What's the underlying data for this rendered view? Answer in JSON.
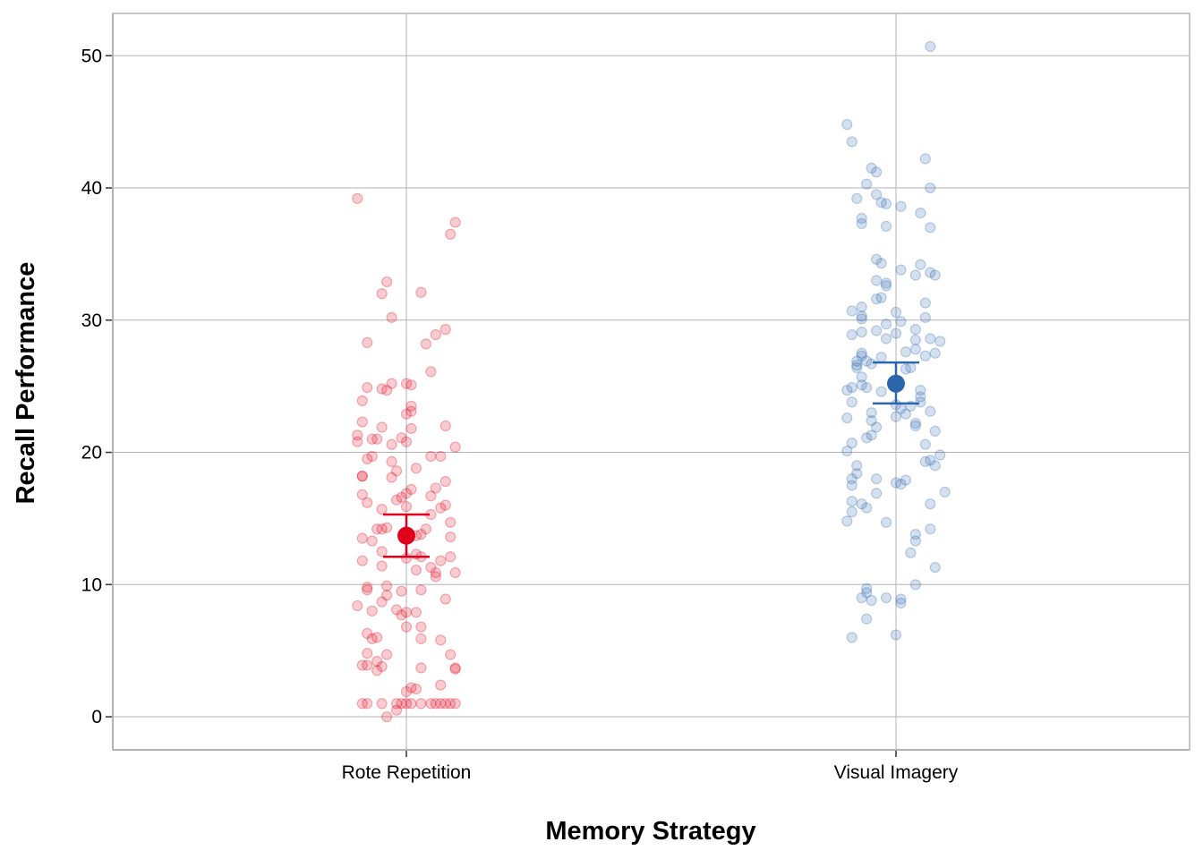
{
  "chart_data": {
    "type": "scatter",
    "xlabel": "Memory Strategy",
    "ylabel": "Recall Performance",
    "categories": [
      "Rote Repetition",
      "Visual Imagery"
    ],
    "ylim": [
      -2.5,
      53.2
    ],
    "yticks": [
      0,
      10,
      20,
      30,
      40,
      50
    ],
    "grid": true,
    "legend": "none",
    "series": [
      {
        "category": "Rote Repetition",
        "color": "#e0001b",
        "summary": {
          "mean": 13.7,
          "lower": 12.1,
          "upper": 15.3
        },
        "points": [
          {
            "x": -0.1,
            "y": 39.2
          },
          {
            "x": 0.1,
            "y": 37.4
          },
          {
            "x": 0.09,
            "y": 36.5
          },
          {
            "x": -0.04,
            "y": 32.9
          },
          {
            "x": -0.05,
            "y": 32.0
          },
          {
            "x": 0.03,
            "y": 32.1
          },
          {
            "x": -0.03,
            "y": 30.2
          },
          {
            "x": 0.08,
            "y": 29.3
          },
          {
            "x": 0.06,
            "y": 28.9
          },
          {
            "x": -0.08,
            "y": 28.3
          },
          {
            "x": 0.04,
            "y": 28.2
          },
          {
            "x": 0.05,
            "y": 26.1
          },
          {
            "x": 0.0,
            "y": 25.2
          },
          {
            "x": -0.03,
            "y": 25.2
          },
          {
            "x": 0.01,
            "y": 25.1
          },
          {
            "x": -0.08,
            "y": 24.9
          },
          {
            "x": -0.05,
            "y": 24.8
          },
          {
            "x": -0.04,
            "y": 24.7
          },
          {
            "x": -0.09,
            "y": 23.9
          },
          {
            "x": 0.01,
            "y": 23.5
          },
          {
            "x": 0.01,
            "y": 23.1
          },
          {
            "x": 0.0,
            "y": 22.9
          },
          {
            "x": -0.09,
            "y": 22.3
          },
          {
            "x": 0.08,
            "y": 22.0
          },
          {
            "x": -0.05,
            "y": 21.9
          },
          {
            "x": 0.01,
            "y": 21.8
          },
          {
            "x": -0.1,
            "y": 21.3
          },
          {
            "x": -0.01,
            "y": 21.1
          },
          {
            "x": -0.07,
            "y": 21.0
          },
          {
            "x": -0.06,
            "y": 21.0
          },
          {
            "x": -0.1,
            "y": 20.8
          },
          {
            "x": 0.0,
            "y": 20.8
          },
          {
            "x": -0.03,
            "y": 20.6
          },
          {
            "x": 0.1,
            "y": 20.4
          },
          {
            "x": -0.07,
            "y": 19.7
          },
          {
            "x": 0.05,
            "y": 19.7
          },
          {
            "x": 0.07,
            "y": 19.7
          },
          {
            "x": -0.08,
            "y": 19.5
          },
          {
            "x": -0.03,
            "y": 19.3
          },
          {
            "x": 0.02,
            "y": 18.8
          },
          {
            "x": -0.02,
            "y": 18.6
          },
          {
            "x": -0.09,
            "y": 18.2
          },
          {
            "x": -0.09,
            "y": 18.2
          },
          {
            "x": -0.03,
            "y": 18.1
          },
          {
            "x": 0.08,
            "y": 17.8
          },
          {
            "x": 0.06,
            "y": 17.3
          },
          {
            "x": 0.01,
            "y": 17.2
          },
          {
            "x": 0.0,
            "y": 16.9
          },
          {
            "x": -0.09,
            "y": 16.8
          },
          {
            "x": 0.05,
            "y": 16.7
          },
          {
            "x": -0.01,
            "y": 16.6
          },
          {
            "x": -0.02,
            "y": 16.4
          },
          {
            "x": -0.08,
            "y": 16.2
          },
          {
            "x": 0.08,
            "y": 16.0
          },
          {
            "x": 0.0,
            "y": 15.9
          },
          {
            "x": 0.07,
            "y": 15.8
          },
          {
            "x": -0.05,
            "y": 15.7
          },
          {
            "x": 0.05,
            "y": 15.3
          },
          {
            "x": 0.09,
            "y": 14.7
          },
          {
            "x": -0.04,
            "y": 14.3
          },
          {
            "x": -0.05,
            "y": 14.2
          },
          {
            "x": -0.06,
            "y": 14.2
          },
          {
            "x": 0.04,
            "y": 14.2
          },
          {
            "x": 0.03,
            "y": 13.8
          },
          {
            "x": 0.02,
            "y": 13.7
          },
          {
            "x": 0.09,
            "y": 13.6
          },
          {
            "x": -0.09,
            "y": 13.5
          },
          {
            "x": -0.07,
            "y": 13.3
          },
          {
            "x": -0.05,
            "y": 12.5
          },
          {
            "x": 0.02,
            "y": 12.3
          },
          {
            "x": 0.09,
            "y": 12.1
          },
          {
            "x": 0.03,
            "y": 12.1
          },
          {
            "x": 0.0,
            "y": 12.0
          },
          {
            "x": 0.07,
            "y": 11.8
          },
          {
            "x": -0.09,
            "y": 11.8
          },
          {
            "x": -0.05,
            "y": 11.4
          },
          {
            "x": 0.05,
            "y": 11.3
          },
          {
            "x": 0.02,
            "y": 11.1
          },
          {
            "x": 0.1,
            "y": 10.9
          },
          {
            "x": 0.06,
            "y": 10.9
          },
          {
            "x": 0.06,
            "y": 10.6
          },
          {
            "x": -0.04,
            "y": 9.9
          },
          {
            "x": -0.08,
            "y": 9.8
          },
          {
            "x": -0.08,
            "y": 9.6
          },
          {
            "x": 0.03,
            "y": 9.6
          },
          {
            "x": -0.01,
            "y": 9.5
          },
          {
            "x": -0.04,
            "y": 9.2
          },
          {
            "x": 0.08,
            "y": 8.9
          },
          {
            "x": -0.05,
            "y": 8.7
          },
          {
            "x": -0.1,
            "y": 8.4
          },
          {
            "x": -0.02,
            "y": 8.1
          },
          {
            "x": -0.07,
            "y": 8.0
          },
          {
            "x": 0.02,
            "y": 7.9
          },
          {
            "x": 0.0,
            "y": 7.9
          },
          {
            "x": -0.01,
            "y": 7.7
          },
          {
            "x": 0.03,
            "y": 6.8
          },
          {
            "x": 0.0,
            "y": 6.8
          },
          {
            "x": -0.08,
            "y": 6.3
          },
          {
            "x": -0.06,
            "y": 6.0
          },
          {
            "x": -0.07,
            "y": 5.9
          },
          {
            "x": 0.03,
            "y": 5.9
          },
          {
            "x": 0.07,
            "y": 5.8
          },
          {
            "x": -0.08,
            "y": 4.8
          },
          {
            "x": -0.04,
            "y": 4.7
          },
          {
            "x": 0.09,
            "y": 4.7
          },
          {
            "x": -0.06,
            "y": 4.2
          },
          {
            "x": -0.09,
            "y": 3.9
          },
          {
            "x": -0.08,
            "y": 3.9
          },
          {
            "x": -0.05,
            "y": 3.8
          },
          {
            "x": 0.03,
            "y": 3.7
          },
          {
            "x": 0.1,
            "y": 3.7
          },
          {
            "x": 0.1,
            "y": 3.6
          },
          {
            "x": -0.06,
            "y": 3.5
          },
          {
            "x": 0.07,
            "y": 2.4
          },
          {
            "x": 0.01,
            "y": 2.2
          },
          {
            "x": 0.02,
            "y": 2.1
          },
          {
            "x": 0.0,
            "y": 1.9
          },
          {
            "x": -0.08,
            "y": 1.0
          },
          {
            "x": -0.09,
            "y": 1.0
          },
          {
            "x": -0.05,
            "y": 1.0
          },
          {
            "x": -0.02,
            "y": 1.0
          },
          {
            "x": 0.0,
            "y": 1.0
          },
          {
            "x": 0.01,
            "y": 1.0
          },
          {
            "x": -0.01,
            "y": 1.0
          },
          {
            "x": 0.03,
            "y": 1.0
          },
          {
            "x": 0.05,
            "y": 1.0
          },
          {
            "x": 0.06,
            "y": 1.0
          },
          {
            "x": 0.07,
            "y": 1.0
          },
          {
            "x": 0.08,
            "y": 1.0
          },
          {
            "x": 0.09,
            "y": 1.0
          },
          {
            "x": 0.1,
            "y": 1.0
          },
          {
            "x": -0.02,
            "y": 0.5
          },
          {
            "x": -0.04,
            "y": 0.0
          }
        ]
      },
      {
        "category": "Visual Imagery",
        "color": "#2c66ad",
        "summary": {
          "mean": 25.2,
          "lower": 23.7,
          "upper": 26.8
        },
        "points": [
          {
            "x": 0.07,
            "y": 50.7
          },
          {
            "x": -0.1,
            "y": 44.8
          },
          {
            "x": -0.09,
            "y": 43.5
          },
          {
            "x": 0.06,
            "y": 42.2
          },
          {
            "x": -0.05,
            "y": 41.5
          },
          {
            "x": -0.04,
            "y": 41.2
          },
          {
            "x": -0.06,
            "y": 40.3
          },
          {
            "x": 0.07,
            "y": 40.0
          },
          {
            "x": -0.04,
            "y": 39.5
          },
          {
            "x": -0.08,
            "y": 39.2
          },
          {
            "x": -0.03,
            "y": 38.9
          },
          {
            "x": -0.02,
            "y": 38.8
          },
          {
            "x": 0.01,
            "y": 38.6
          },
          {
            "x": 0.05,
            "y": 38.1
          },
          {
            "x": -0.07,
            "y": 37.7
          },
          {
            "x": -0.07,
            "y": 37.3
          },
          {
            "x": -0.02,
            "y": 37.1
          },
          {
            "x": 0.07,
            "y": 37.0
          },
          {
            "x": -0.04,
            "y": 34.6
          },
          {
            "x": -0.03,
            "y": 34.3
          },
          {
            "x": 0.05,
            "y": 34.2
          },
          {
            "x": 0.01,
            "y": 33.8
          },
          {
            "x": 0.07,
            "y": 33.6
          },
          {
            "x": 0.08,
            "y": 33.4
          },
          {
            "x": 0.04,
            "y": 33.4
          },
          {
            "x": -0.04,
            "y": 33.0
          },
          {
            "x": -0.02,
            "y": 32.8
          },
          {
            "x": -0.02,
            "y": 32.6
          },
          {
            "x": -0.03,
            "y": 31.7
          },
          {
            "x": -0.04,
            "y": 31.6
          },
          {
            "x": 0.06,
            "y": 31.3
          },
          {
            "x": -0.07,
            "y": 31.0
          },
          {
            "x": -0.09,
            "y": 30.7
          },
          {
            "x": 0.0,
            "y": 30.6
          },
          {
            "x": -0.07,
            "y": 30.3
          },
          {
            "x": -0.07,
            "y": 30.1
          },
          {
            "x": 0.06,
            "y": 30.2
          },
          {
            "x": 0.01,
            "y": 29.9
          },
          {
            "x": -0.02,
            "y": 29.7
          },
          {
            "x": 0.04,
            "y": 29.3
          },
          {
            "x": -0.04,
            "y": 29.2
          },
          {
            "x": -0.07,
            "y": 29.1
          },
          {
            "x": -0.09,
            "y": 28.9
          },
          {
            "x": 0.0,
            "y": 29.0
          },
          {
            "x": 0.07,
            "y": 28.6
          },
          {
            "x": -0.02,
            "y": 28.6
          },
          {
            "x": 0.04,
            "y": 28.5
          },
          {
            "x": 0.09,
            "y": 28.4
          },
          {
            "x": 0.04,
            "y": 27.8
          },
          {
            "x": 0.02,
            "y": 27.6
          },
          {
            "x": -0.07,
            "y": 27.5
          },
          {
            "x": 0.08,
            "y": 27.5
          },
          {
            "x": -0.07,
            "y": 27.3
          },
          {
            "x": 0.06,
            "y": 27.3
          },
          {
            "x": -0.03,
            "y": 27.2
          },
          {
            "x": -0.08,
            "y": 26.9
          },
          {
            "x": -0.06,
            "y": 26.9
          },
          {
            "x": -0.05,
            "y": 26.7
          },
          {
            "x": -0.08,
            "y": 26.6
          },
          {
            "x": 0.03,
            "y": 26.4
          },
          {
            "x": -0.08,
            "y": 26.4
          },
          {
            "x": 0.02,
            "y": 26.3
          },
          {
            "x": -0.07,
            "y": 25.7
          },
          {
            "x": -0.07,
            "y": 25.1
          },
          {
            "x": -0.06,
            "y": 24.9
          },
          {
            "x": -0.09,
            "y": 24.9
          },
          {
            "x": -0.1,
            "y": 24.7
          },
          {
            "x": 0.05,
            "y": 24.7
          },
          {
            "x": -0.03,
            "y": 24.6
          },
          {
            "x": 0.05,
            "y": 24.2
          },
          {
            "x": 0.05,
            "y": 23.8
          },
          {
            "x": -0.09,
            "y": 23.8
          },
          {
            "x": 0.0,
            "y": 23.6
          },
          {
            "x": 0.03,
            "y": 23.5
          },
          {
            "x": 0.01,
            "y": 23.3
          },
          {
            "x": 0.07,
            "y": 23.1
          },
          {
            "x": -0.05,
            "y": 23.0
          },
          {
            "x": 0.02,
            "y": 22.9
          },
          {
            "x": 0.0,
            "y": 22.7
          },
          {
            "x": -0.1,
            "y": 22.6
          },
          {
            "x": -0.05,
            "y": 22.4
          },
          {
            "x": 0.04,
            "y": 22.2
          },
          {
            "x": 0.04,
            "y": 22.0
          },
          {
            "x": -0.04,
            "y": 21.9
          },
          {
            "x": 0.08,
            "y": 21.6
          },
          {
            "x": -0.05,
            "y": 21.3
          },
          {
            "x": -0.06,
            "y": 21.1
          },
          {
            "x": -0.09,
            "y": 20.7
          },
          {
            "x": 0.06,
            "y": 20.6
          },
          {
            "x": -0.1,
            "y": 20.1
          },
          {
            "x": 0.09,
            "y": 19.8
          },
          {
            "x": 0.07,
            "y": 19.4
          },
          {
            "x": 0.06,
            "y": 19.3
          },
          {
            "x": 0.08,
            "y": 19.0
          },
          {
            "x": -0.08,
            "y": 19.0
          },
          {
            "x": -0.08,
            "y": 18.4
          },
          {
            "x": -0.04,
            "y": 18.0
          },
          {
            "x": -0.09,
            "y": 18.0
          },
          {
            "x": 0.02,
            "y": 17.9
          },
          {
            "x": 0.0,
            "y": 17.7
          },
          {
            "x": 0.01,
            "y": 17.6
          },
          {
            "x": -0.09,
            "y": 17.5
          },
          {
            "x": 0.1,
            "y": 17.0
          },
          {
            "x": -0.04,
            "y": 16.9
          },
          {
            "x": -0.09,
            "y": 16.3
          },
          {
            "x": -0.07,
            "y": 16.1
          },
          {
            "x": 0.07,
            "y": 16.1
          },
          {
            "x": -0.06,
            "y": 15.8
          },
          {
            "x": -0.09,
            "y": 15.5
          },
          {
            "x": -0.1,
            "y": 14.8
          },
          {
            "x": -0.02,
            "y": 14.7
          },
          {
            "x": 0.07,
            "y": 14.2
          },
          {
            "x": 0.04,
            "y": 13.8
          },
          {
            "x": 0.04,
            "y": 13.3
          },
          {
            "x": 0.03,
            "y": 12.4
          },
          {
            "x": 0.08,
            "y": 11.3
          },
          {
            "x": 0.04,
            "y": 10.0
          },
          {
            "x": -0.06,
            "y": 9.7
          },
          {
            "x": -0.06,
            "y": 9.4
          },
          {
            "x": -0.07,
            "y": 9.0
          },
          {
            "x": -0.02,
            "y": 9.0
          },
          {
            "x": 0.01,
            "y": 8.9
          },
          {
            "x": -0.05,
            "y": 8.8
          },
          {
            "x": 0.01,
            "y": 8.6
          },
          {
            "x": -0.06,
            "y": 7.4
          },
          {
            "x": 0.0,
            "y": 6.2
          },
          {
            "x": -0.09,
            "y": 6.0
          }
        ]
      }
    ]
  }
}
